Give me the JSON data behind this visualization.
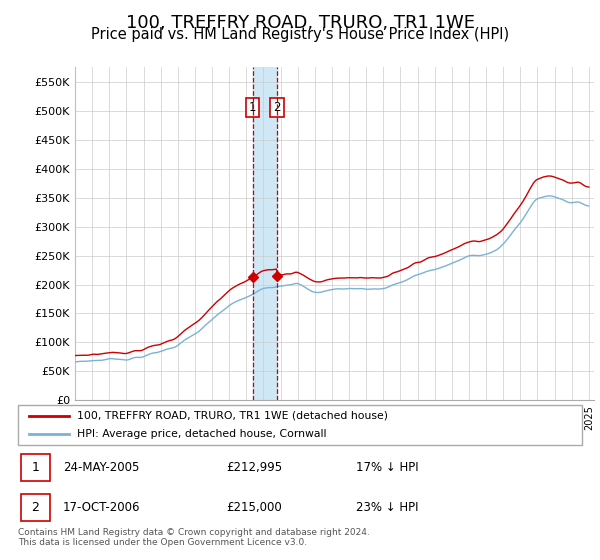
{
  "title": "100, TREFFRY ROAD, TRURO, TR1 1WE",
  "subtitle": "Price paid vs. HM Land Registry's House Price Index (HPI)",
  "ylabel_ticks": [
    "£0",
    "£50K",
    "£100K",
    "£150K",
    "£200K",
    "£250K",
    "£300K",
    "£350K",
    "£400K",
    "£450K",
    "£500K",
    "£550K"
  ],
  "ytick_values": [
    0,
    50000,
    100000,
    150000,
    200000,
    250000,
    300000,
    350000,
    400000,
    450000,
    500000,
    550000
  ],
  "ylim": [
    0,
    575000
  ],
  "x_start_year": 1995,
  "x_end_year": 2025,
  "hpi_color": "#7ab3d4",
  "hpi_shade_color": "#d0e8f5",
  "price_color": "#cc0000",
  "purchase1_date": 2005.38,
  "purchase1_price": 212995,
  "purchase2_date": 2006.79,
  "purchase2_price": 215000,
  "legend_label_red": "100, TREFFRY ROAD, TRURO, TR1 1WE (detached house)",
  "legend_label_blue": "HPI: Average price, detached house, Cornwall",
  "table_row1": [
    "1",
    "24-MAY-2005",
    "£212,995",
    "17% ↓ HPI"
  ],
  "table_row2": [
    "2",
    "17-OCT-2006",
    "£215,000",
    "23% ↓ HPI"
  ],
  "footnote": "Contains HM Land Registry data © Crown copyright and database right 2024.\nThis data is licensed under the Open Government Licence v3.0.",
  "background_color": "#ffffff",
  "grid_color": "#cccccc",
  "title_fontsize": 13,
  "subtitle_fontsize": 10.5
}
